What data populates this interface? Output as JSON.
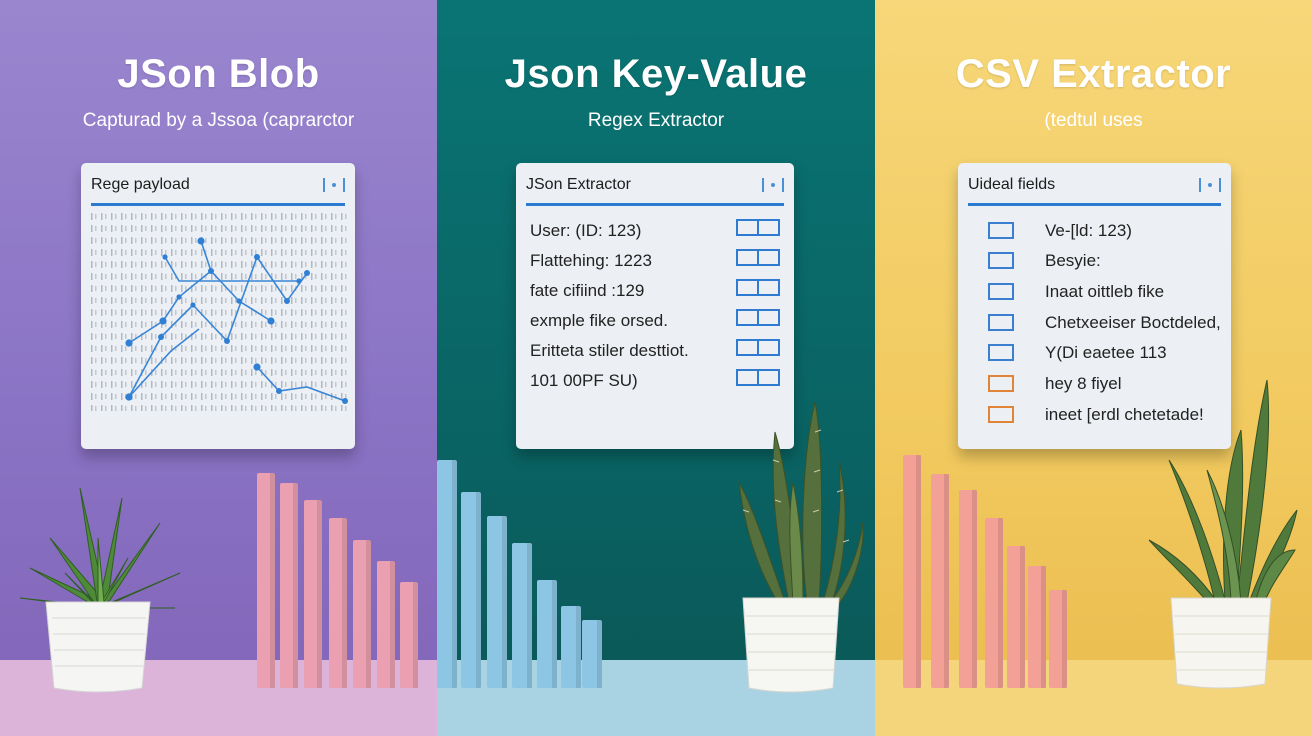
{
  "panels": [
    {
      "title": "JSon Blob",
      "subtitle": "Capturad by a Jssoa (caprarctor",
      "card_title": "Rege payload",
      "bar_heights": [
        215,
        205,
        188,
        170,
        148,
        127,
        106
      ]
    },
    {
      "title": "Json Key-Value",
      "subtitle": "Regex Extractor",
      "card_title": "JSon Extractor",
      "rows": [
        "User: (ID: 123)",
        "Flattehing: 1223",
        "fate cifiind :129",
        "exmple fike orsed.",
        "Eritteta stiler desttiot.",
        "101 00PF SU)"
      ],
      "bar_heights": [
        228,
        196,
        172,
        145,
        108,
        82,
        68
      ]
    },
    {
      "title": "CSV Extractor",
      "subtitle": "(tedtul uses",
      "card_title": "Uideal fields",
      "rows": [
        "Ve-[ld: 123)",
        "Besyie:",
        "Inaat oittleb fike",
        "Chetxeeiser Boctdeled,",
        "Y(Di eaetee 113",
        "hey 8 fiyel",
        "ineet [erdl chetetade!"
      ],
      "row_colors": [
        "#3a7fd0",
        "#3a7fd0",
        "#3a7fd0",
        "#3a7fd0",
        "#3a7fd0",
        "#e0843a",
        "#e0843a"
      ],
      "bar_heights": [
        233,
        214,
        198,
        170,
        142,
        122,
        98
      ]
    }
  ],
  "colors": {
    "accent_blue": "#2b7bd0",
    "checkbox_orange": "#e0843a",
    "bar_pink": "#eaa0b0",
    "bar_blue": "#8cc6e4",
    "bar_salmon": "#f3a197"
  }
}
